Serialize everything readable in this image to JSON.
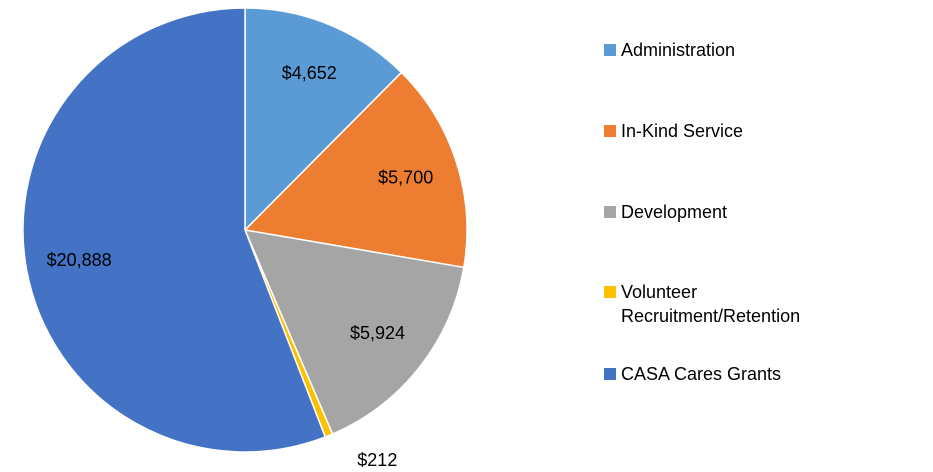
{
  "chart_data": {
    "type": "pie",
    "categories": [
      "Administration",
      "In-Kind Service",
      "Development",
      "Volunteer Recruitment/Retention",
      "CASA Cares Grants"
    ],
    "values": [
      4652,
      5700,
      5924,
      212,
      20888
    ],
    "value_labels": [
      "$4,652",
      "$5,700",
      "$5,924",
      "$212",
      "$20,888"
    ],
    "colors": [
      "#5b9bd5",
      "#ed7d31",
      "#a5a5a5",
      "#ffc000",
      "#4472c4"
    ],
    "legend": "right"
  }
}
